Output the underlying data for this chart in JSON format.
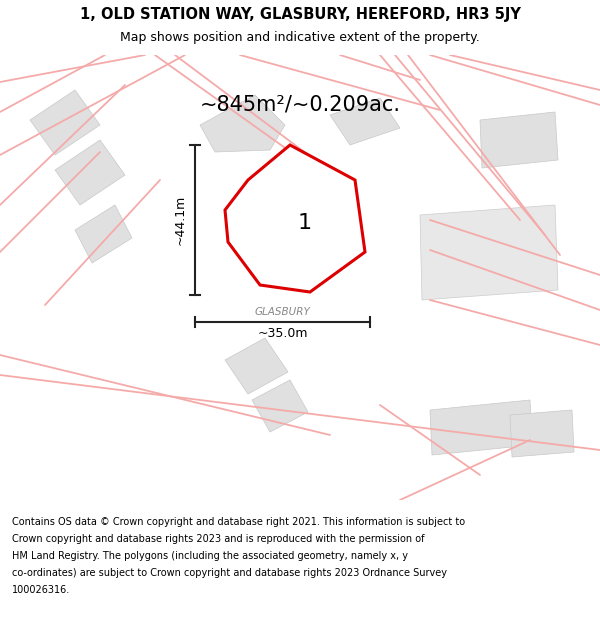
{
  "title_line1": "1, OLD STATION WAY, GLASBURY, HEREFORD, HR3 5JY",
  "title_line2": "Map shows position and indicative extent of the property.",
  "area_label": "~845m²/~0.209ac.",
  "property_number": "1",
  "width_label": "~35.0m",
  "height_label": "~44.1m",
  "road_label": "GLASBURY",
  "footer_lines": [
    "Contains OS data © Crown copyright and database right 2021. This information is subject to Crown copyright and database rights 2023 and is reproduced with the permission of",
    "HM Land Registry. The polygons (including the associated geometry, namely x, y",
    "co-ordinates) are subject to Crown copyright and database rights 2023 Ordnance Survey",
    "100026316."
  ],
  "bg_color": "#ffffff",
  "map_bg": "#ffffff",
  "property_color": "#dd0000",
  "building_color": "#e0e0e0",
  "building_edge_color": "#c8c8c8",
  "road_line_color": "#f5aaaa",
  "dim_line_color": "#222222",
  "road_outline_color": "#e8e8e4",
  "title_fontsize": 10.5,
  "subtitle_fontsize": 9,
  "area_fontsize": 15,
  "dim_fontsize": 9,
  "road_label_fontsize": 7.5,
  "prop_label_fontsize": 16,
  "footer_fontsize": 7
}
